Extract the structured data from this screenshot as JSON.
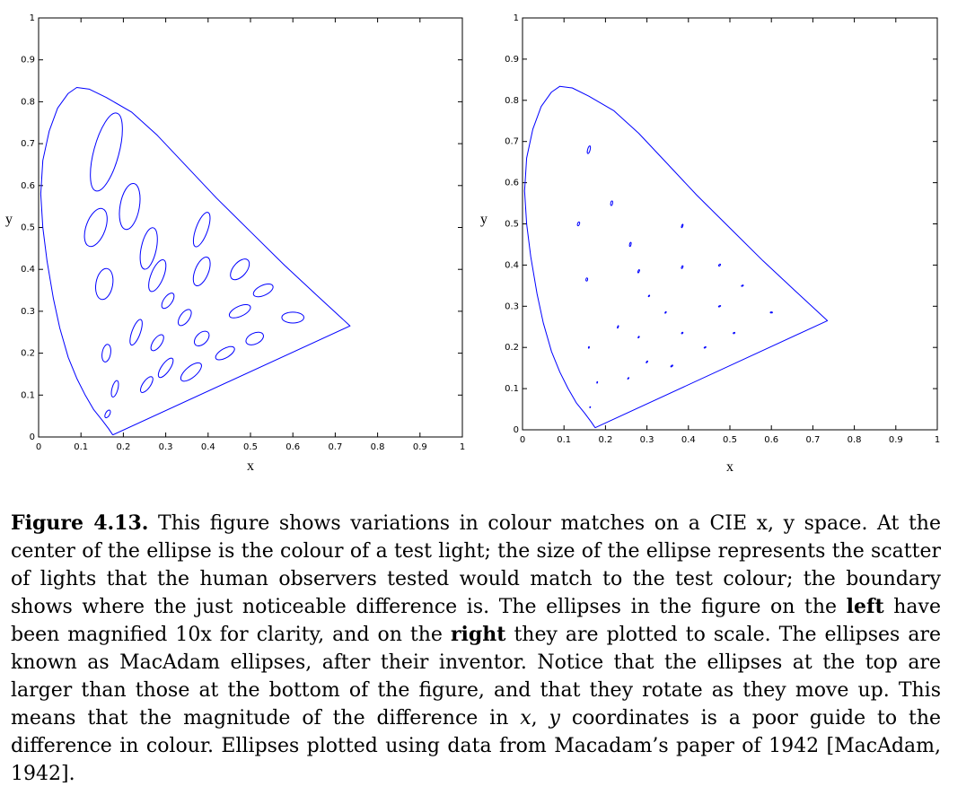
{
  "colors": {
    "curve": "#0000ff",
    "axes": "#000000"
  },
  "chart_data": [
    {
      "type": "scatter",
      "name": "left",
      "xlabel": "x",
      "ylabel": "y",
      "xlim": [
        0,
        1
      ],
      "ylim": [
        0,
        1
      ],
      "xticks": [
        "0",
        "0.1",
        "0.2",
        "0.3",
        "0.4",
        "0.5",
        "0.6",
        "0.7",
        "0.8",
        "0.9",
        "1"
      ],
      "yticks": [
        "0",
        "0.1",
        "0.2",
        "0.3",
        "0.4",
        "0.5",
        "0.6",
        "0.7",
        "0.8",
        "0.9",
        "1"
      ],
      "grid": false,
      "boundary": [
        [
          0.175,
          0.005
        ],
        [
          0.165,
          0.02
        ],
        [
          0.15,
          0.04
        ],
        [
          0.13,
          0.065
        ],
        [
          0.11,
          0.1
        ],
        [
          0.09,
          0.14
        ],
        [
          0.07,
          0.19
        ],
        [
          0.05,
          0.26
        ],
        [
          0.035,
          0.33
        ],
        [
          0.02,
          0.42
        ],
        [
          0.01,
          0.5
        ],
        [
          0.005,
          0.58
        ],
        [
          0.01,
          0.66
        ],
        [
          0.025,
          0.73
        ],
        [
          0.045,
          0.785
        ],
        [
          0.07,
          0.82
        ],
        [
          0.09,
          0.834
        ],
        [
          0.12,
          0.83
        ],
        [
          0.16,
          0.81
        ],
        [
          0.22,
          0.775
        ],
        [
          0.28,
          0.72
        ],
        [
          0.35,
          0.645
        ],
        [
          0.42,
          0.57
        ],
        [
          0.5,
          0.49
        ],
        [
          0.58,
          0.41
        ],
        [
          0.66,
          0.335
        ],
        [
          0.735,
          0.265
        ],
        [
          0.175,
          0.005
        ]
      ],
      "ellipses": [
        {
          "cx": 0.16,
          "cy": 0.68,
          "a": 0.095,
          "b": 0.03,
          "angle": 75
        },
        {
          "cx": 0.215,
          "cy": 0.55,
          "a": 0.055,
          "b": 0.023,
          "angle": 80
        },
        {
          "cx": 0.135,
          "cy": 0.5,
          "a": 0.047,
          "b": 0.023,
          "angle": 70
        },
        {
          "cx": 0.26,
          "cy": 0.45,
          "a": 0.05,
          "b": 0.018,
          "angle": 78
        },
        {
          "cx": 0.385,
          "cy": 0.495,
          "a": 0.043,
          "b": 0.014,
          "angle": 70
        },
        {
          "cx": 0.28,
          "cy": 0.385,
          "a": 0.04,
          "b": 0.015,
          "angle": 68
        },
        {
          "cx": 0.385,
          "cy": 0.395,
          "a": 0.036,
          "b": 0.016,
          "angle": 68
        },
        {
          "cx": 0.475,
          "cy": 0.4,
          "a": 0.029,
          "b": 0.016,
          "angle": 50
        },
        {
          "cx": 0.155,
          "cy": 0.365,
          "a": 0.037,
          "b": 0.02,
          "angle": 80
        },
        {
          "cx": 0.53,
          "cy": 0.35,
          "a": 0.025,
          "b": 0.012,
          "angle": 25
        },
        {
          "cx": 0.305,
          "cy": 0.325,
          "a": 0.021,
          "b": 0.01,
          "angle": 55
        },
        {
          "cx": 0.345,
          "cy": 0.285,
          "a": 0.022,
          "b": 0.011,
          "angle": 55
        },
        {
          "cx": 0.475,
          "cy": 0.3,
          "a": 0.027,
          "b": 0.012,
          "angle": 25
        },
        {
          "cx": 0.6,
          "cy": 0.285,
          "a": 0.026,
          "b": 0.013,
          "angle": 0
        },
        {
          "cx": 0.23,
          "cy": 0.25,
          "a": 0.032,
          "b": 0.01,
          "angle": 70
        },
        {
          "cx": 0.28,
          "cy": 0.225,
          "a": 0.022,
          "b": 0.01,
          "angle": 55
        },
        {
          "cx": 0.385,
          "cy": 0.235,
          "a": 0.021,
          "b": 0.013,
          "angle": 45
        },
        {
          "cx": 0.51,
          "cy": 0.235,
          "a": 0.022,
          "b": 0.013,
          "angle": 25
        },
        {
          "cx": 0.16,
          "cy": 0.2,
          "a": 0.021,
          "b": 0.01,
          "angle": 80
        },
        {
          "cx": 0.44,
          "cy": 0.2,
          "a": 0.025,
          "b": 0.011,
          "angle": 30
        },
        {
          "cx": 0.3,
          "cy": 0.165,
          "a": 0.027,
          "b": 0.01,
          "angle": 55
        },
        {
          "cx": 0.36,
          "cy": 0.155,
          "a": 0.03,
          "b": 0.013,
          "angle": 40
        },
        {
          "cx": 0.255,
          "cy": 0.125,
          "a": 0.022,
          "b": 0.009,
          "angle": 55
        },
        {
          "cx": 0.18,
          "cy": 0.115,
          "a": 0.02,
          "b": 0.007,
          "angle": 75
        },
        {
          "cx": 0.163,
          "cy": 0.055,
          "a": 0.01,
          "b": 0.005,
          "angle": 60
        }
      ]
    },
    {
      "type": "scatter",
      "name": "right",
      "xlabel": "x",
      "ylabel": "y",
      "xlim": [
        0,
        1
      ],
      "ylim": [
        0,
        1
      ],
      "xticks": [
        "0",
        "0.1",
        "0.2",
        "0.3",
        "0.4",
        "0.5",
        "0.6",
        "0.7",
        "0.8",
        "0.9",
        "1"
      ],
      "yticks": [
        "0",
        "0.1",
        "0.2",
        "0.3",
        "0.4",
        "0.5",
        "0.6",
        "0.7",
        "0.8",
        "0.9",
        "1"
      ],
      "grid": false,
      "boundary": [
        [
          0.175,
          0.005
        ],
        [
          0.165,
          0.02
        ],
        [
          0.15,
          0.04
        ],
        [
          0.13,
          0.065
        ],
        [
          0.11,
          0.1
        ],
        [
          0.09,
          0.14
        ],
        [
          0.07,
          0.19
        ],
        [
          0.05,
          0.26
        ],
        [
          0.035,
          0.33
        ],
        [
          0.02,
          0.42
        ],
        [
          0.01,
          0.5
        ],
        [
          0.005,
          0.58
        ],
        [
          0.01,
          0.66
        ],
        [
          0.025,
          0.73
        ],
        [
          0.045,
          0.785
        ],
        [
          0.07,
          0.82
        ],
        [
          0.09,
          0.834
        ],
        [
          0.12,
          0.83
        ],
        [
          0.16,
          0.81
        ],
        [
          0.22,
          0.775
        ],
        [
          0.28,
          0.72
        ],
        [
          0.35,
          0.645
        ],
        [
          0.42,
          0.57
        ],
        [
          0.5,
          0.49
        ],
        [
          0.58,
          0.41
        ],
        [
          0.66,
          0.335
        ],
        [
          0.735,
          0.265
        ],
        [
          0.175,
          0.005
        ]
      ],
      "ellipses": [
        {
          "cx": 0.16,
          "cy": 0.68,
          "a": 0.0095,
          "b": 0.003,
          "angle": 75
        },
        {
          "cx": 0.215,
          "cy": 0.55,
          "a": 0.0055,
          "b": 0.0023,
          "angle": 80
        },
        {
          "cx": 0.135,
          "cy": 0.5,
          "a": 0.0047,
          "b": 0.0023,
          "angle": 70
        },
        {
          "cx": 0.26,
          "cy": 0.45,
          "a": 0.005,
          "b": 0.0018,
          "angle": 78
        },
        {
          "cx": 0.385,
          "cy": 0.495,
          "a": 0.0043,
          "b": 0.0014,
          "angle": 70
        },
        {
          "cx": 0.28,
          "cy": 0.385,
          "a": 0.004,
          "b": 0.0015,
          "angle": 68
        },
        {
          "cx": 0.385,
          "cy": 0.395,
          "a": 0.0036,
          "b": 0.0016,
          "angle": 68
        },
        {
          "cx": 0.475,
          "cy": 0.4,
          "a": 0.0029,
          "b": 0.0016,
          "angle": 50
        },
        {
          "cx": 0.155,
          "cy": 0.365,
          "a": 0.0037,
          "b": 0.002,
          "angle": 80
        },
        {
          "cx": 0.53,
          "cy": 0.35,
          "a": 0.0025,
          "b": 0.0012,
          "angle": 25
        },
        {
          "cx": 0.305,
          "cy": 0.325,
          "a": 0.0021,
          "b": 0.001,
          "angle": 55
        },
        {
          "cx": 0.345,
          "cy": 0.285,
          "a": 0.0022,
          "b": 0.0011,
          "angle": 55
        },
        {
          "cx": 0.475,
          "cy": 0.3,
          "a": 0.0027,
          "b": 0.0012,
          "angle": 25
        },
        {
          "cx": 0.6,
          "cy": 0.285,
          "a": 0.0026,
          "b": 0.0013,
          "angle": 0
        },
        {
          "cx": 0.23,
          "cy": 0.25,
          "a": 0.0032,
          "b": 0.001,
          "angle": 70
        },
        {
          "cx": 0.28,
          "cy": 0.225,
          "a": 0.0022,
          "b": 0.001,
          "angle": 55
        },
        {
          "cx": 0.385,
          "cy": 0.235,
          "a": 0.0021,
          "b": 0.0013,
          "angle": 45
        },
        {
          "cx": 0.51,
          "cy": 0.235,
          "a": 0.0022,
          "b": 0.0013,
          "angle": 25
        },
        {
          "cx": 0.16,
          "cy": 0.2,
          "a": 0.0021,
          "b": 0.001,
          "angle": 80
        },
        {
          "cx": 0.44,
          "cy": 0.2,
          "a": 0.0025,
          "b": 0.0011,
          "angle": 30
        },
        {
          "cx": 0.3,
          "cy": 0.165,
          "a": 0.0027,
          "b": 0.001,
          "angle": 55
        },
        {
          "cx": 0.36,
          "cy": 0.155,
          "a": 0.003,
          "b": 0.0013,
          "angle": 40
        },
        {
          "cx": 0.255,
          "cy": 0.125,
          "a": 0.0022,
          "b": 0.0009,
          "angle": 55
        },
        {
          "cx": 0.18,
          "cy": 0.115,
          "a": 0.002,
          "b": 0.0007,
          "angle": 75
        },
        {
          "cx": 0.163,
          "cy": 0.055,
          "a": 0.001,
          "b": 0.0005,
          "angle": 60
        }
      ]
    }
  ],
  "caption": {
    "label": "Figure 4.13.",
    "text_1": " This figure shows variations in colour matches on a CIE x, y space. At the center of the ellipse is the colour of a test light; the size of the ellipse represents the scatter of lights that the human observers tested would match to the test colour; the boundary shows where the just noticeable difference is. The ellipses in the figure on the ",
    "left": "left",
    "text_2": " have been magnified 10x for clarity, and on the ",
    "right": "right",
    "text_3": " they are plotted to scale. The ellipses are known as MacAdam ellipses, after their inventor. Notice that the ellipses at the top are larger than those at the bottom of the figure, and that they rotate as they move up. This means that the magnitude of the difference in ",
    "x_var": "x",
    "comma": ", ",
    "y_var": "y",
    "text_4": " coordinates is a poor guide to the difference in colour. Ellipses plotted using data from Macadam’s paper of 1942 [MacAdam, 1942]."
  }
}
